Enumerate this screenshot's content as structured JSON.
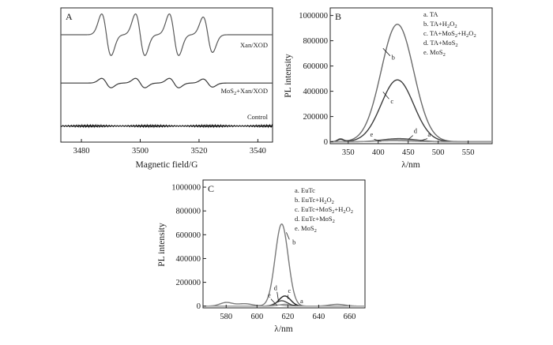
{
  "chart_data": [
    {
      "type": "line",
      "panel_label": "A",
      "xlabel": "Magnetic field/G",
      "ylabel": "",
      "xlim": [
        3473,
        3545
      ],
      "xticks": [
        "3480",
        "3500",
        "3520",
        "3540"
      ],
      "yticks": [],
      "series": [
        {
          "name": "Xan/XOD",
          "baseline": 0.8,
          "amplitude": 0.155,
          "lines": [
            {
              "x": 3488.5,
              "rel": 1.0
            },
            {
              "x": 3500.0,
              "rel": 1.0
            },
            {
              "x": 3511.5,
              "rel": 1.0
            },
            {
              "x": 3523.0,
              "rel": 0.85
            }
          ]
        },
        {
          "name": "MoS2+Xan/XOD",
          "baseline": 0.44,
          "amplitude": 0.035,
          "lines": [
            {
              "x": 3488.5,
              "rel": 1.0
            },
            {
              "x": 3500.0,
              "rel": 1.0
            },
            {
              "x": 3511.5,
              "rel": 1.0
            },
            {
              "x": 3523.0,
              "rel": 0.85
            }
          ]
        },
        {
          "name": "Control",
          "baseline": 0.12,
          "amplitude": 0.0,
          "noise": 0.008,
          "lines": []
        }
      ],
      "labels": [
        {
          "text": "Xan/XOD"
        },
        {
          "text": "MoS2+Xan/XOD"
        },
        {
          "text": "Control"
        }
      ]
    },
    {
      "type": "line",
      "panel_label": "B",
      "xlabel": "λ/nm",
      "ylabel": "PL intensity",
      "xlim": [
        320,
        590
      ],
      "ylim": [
        -15000,
        1060000
      ],
      "xticks": [
        350,
        400,
        450,
        500,
        550
      ],
      "yticks": [
        0,
        200000,
        400000,
        600000,
        800000,
        1000000
      ],
      "legend": {
        "position": "top-right",
        "entries": [
          "a. TA",
          "b. TA+H2O2",
          "c. TA+MoS2+H2O2",
          "d. TA+MoS2",
          "e. MoS2"
        ]
      },
      "series": [
        {
          "name": "a",
          "peaks": [
            {
              "x": 435,
              "y": 15000,
              "w": 28
            }
          ]
        },
        {
          "name": "b",
          "peaks": [
            {
              "x": 432,
              "y": 930000,
              "w": 27
            }
          ],
          "extra": [
            {
              "x": 337,
              "y": 22000,
              "w": 5
            }
          ]
        },
        {
          "name": "c",
          "peaks": [
            {
              "x": 432,
              "y": 490000,
              "w": 27
            }
          ],
          "extra": [
            {
              "x": 337,
              "y": 18000,
              "w": 5
            }
          ]
        },
        {
          "name": "d",
          "peaks": [
            {
              "x": 435,
              "y": 25000,
              "w": 28
            }
          ]
        },
        {
          "name": "e",
          "peaks": [
            {
              "x": 425,
              "y": 8000,
              "w": 30
            }
          ]
        }
      ],
      "curve_labels": [
        "a",
        "b",
        "c",
        "d",
        "e"
      ]
    },
    {
      "type": "line",
      "panel_label": "C",
      "xlabel": "λ/nm",
      "ylabel": "PL intensity",
      "xlim": [
        565,
        670
      ],
      "ylim": [
        -15000,
        1060000
      ],
      "xticks": [
        580,
        600,
        620,
        640,
        660
      ],
      "yticks": [
        0,
        200000,
        400000,
        600000,
        800000,
        1000000
      ],
      "legend": {
        "position": "top-right",
        "entries": [
          "a. EuTc",
          "b. EuTc+H2O2",
          "c. EuTc+MoS2+H2O2",
          "d. EuTc+MoS2",
          "e. MoS2"
        ]
      },
      "series": [
        {
          "name": "a",
          "peaks": [
            {
              "x": 618,
              "y": 15000,
              "w": 4
            }
          ]
        },
        {
          "name": "b",
          "peaks": [
            {
              "x": 616,
              "y": 690000,
              "w": 4.2
            }
          ],
          "extra": [
            {
              "x": 580,
              "y": 30000,
              "w": 4
            },
            {
              "x": 592,
              "y": 20000,
              "w": 5
            },
            {
              "x": 652,
              "y": 15000,
              "w": 5
            }
          ]
        },
        {
          "name": "c",
          "peaks": [
            {
              "x": 618,
              "y": 85000,
              "w": 3.8
            }
          ]
        },
        {
          "name": "d",
          "peaks": [
            {
              "x": 616,
              "y": 45000,
              "w": 3.8
            }
          ]
        },
        {
          "name": "e",
          "peaks": [
            {
              "x": 614,
              "y": 10000,
              "w": 3
            }
          ]
        }
      ],
      "curve_labels": [
        "a",
        "b",
        "c",
        "d",
        "e"
      ]
    }
  ]
}
